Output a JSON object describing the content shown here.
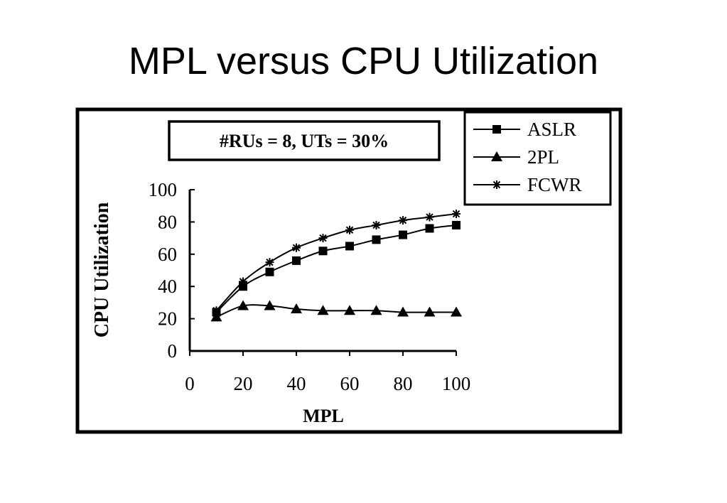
{
  "slide": {
    "title": "MPL versus CPU Utilization"
  },
  "chart_data": {
    "type": "line",
    "annotation": "#RUs = 8, UTs = 30%",
    "xlabel": "MPL",
    "ylabel": "CPU Utilization",
    "xlim": [
      0,
      100
    ],
    "ylim": [
      0,
      100
    ],
    "xticks": [
      "0",
      "20",
      "40",
      "60",
      "80",
      "100"
    ],
    "yticks": [
      "0",
      "20",
      "40",
      "60",
      "80",
      "100"
    ],
    "grid": false,
    "legend_position": "top-right",
    "x": [
      10,
      20,
      30,
      40,
      50,
      60,
      70,
      80,
      90,
      100
    ],
    "series": [
      {
        "name": "ASLR",
        "marker": "square",
        "values": [
          24,
          40,
          49,
          56,
          62,
          65,
          69,
          72,
          76,
          78
        ]
      },
      {
        "name": "2PL",
        "marker": "triangle",
        "values": [
          21,
          28,
          28,
          26,
          25,
          25,
          25,
          24,
          24,
          24
        ]
      },
      {
        "name": "FCWR",
        "marker": "asterisk",
        "values": [
          25,
          43,
          55,
          64,
          70,
          75,
          78,
          81,
          83,
          85
        ]
      }
    ]
  }
}
